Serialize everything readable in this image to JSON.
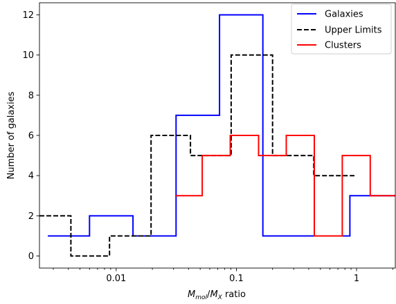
{
  "chart_data": {
    "type": "line",
    "title": "",
    "xlabel": "M_mol/M_X ratio",
    "xlabel_parts": {
      "m1": "M",
      "sub1": "mol",
      "slash": "/",
      "m2": "M",
      "sub2": "X",
      "rest": " ratio"
    },
    "ylabel": "Number of galaxies",
    "x_scale": "log",
    "xlim": [
      0.0023,
      2.1
    ],
    "ylim": [
      -0.6,
      12.6
    ],
    "x_ticks": [
      {
        "value": 0.01,
        "label": "0.01"
      },
      {
        "value": 0.1,
        "label": "0.1"
      },
      {
        "value": 1,
        "label": "1"
      }
    ],
    "y_ticks": [
      {
        "value": 0,
        "label": "0"
      },
      {
        "value": 2,
        "label": "2"
      },
      {
        "value": 4,
        "label": "4"
      },
      {
        "value": 6,
        "label": "6"
      },
      {
        "value": 8,
        "label": "8"
      },
      {
        "value": 10,
        "label": "10"
      },
      {
        "value": 12,
        "label": "12"
      }
    ],
    "grid": false,
    "legend_position": "top-right",
    "series": [
      {
        "name": "Galaxies",
        "color": "#0000ff",
        "dash": "solid",
        "x": [
          0.0027,
          0.006,
          0.006,
          0.0138,
          0.0138,
          0.0315,
          0.0315,
          0.0724,
          0.0724,
          0.166,
          0.166,
          0.38,
          0.38,
          0.88,
          0.88,
          2.1
        ],
        "y": [
          1,
          1,
          2,
          2,
          1,
          1,
          7,
          7,
          12,
          12,
          1,
          1,
          1,
          1,
          3,
          3
        ]
      },
      {
        "name": "Upper Limits",
        "color": "#000000",
        "dash": "dashed",
        "x": [
          0.0023,
          0.0042,
          0.0042,
          0.0088,
          0.0088,
          0.0195,
          0.0195,
          0.0415,
          0.0415,
          0.0905,
          0.0905,
          0.2,
          0.2,
          0.44,
          0.44,
          0.96
        ],
        "y": [
          2,
          2,
          0,
          0,
          1,
          1,
          6,
          6,
          5,
          5,
          10,
          10,
          5,
          5,
          4,
          4
        ]
      },
      {
        "name": "Clusters",
        "color": "#ff0000",
        "dash": "solid",
        "x": [
          0.031,
          0.052,
          0.052,
          0.089,
          0.089,
          0.153,
          0.153,
          0.26,
          0.26,
          0.445,
          0.445,
          0.76,
          0.76,
          1.3,
          1.3,
          2.1
        ],
        "y": [
          3,
          3,
          5,
          5,
          6,
          6,
          5,
          5,
          6,
          6,
          1,
          1,
          5,
          5,
          3,
          3
        ]
      }
    ]
  }
}
